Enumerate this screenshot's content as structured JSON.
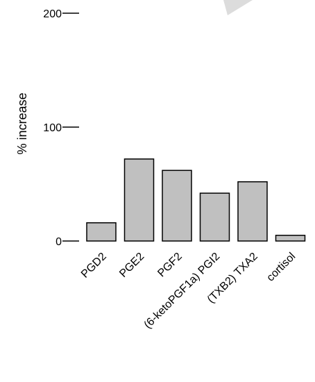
{
  "chart_data": {
    "type": "bar",
    "title": "",
    "xlabel": "",
    "ylabel": "% increase",
    "categories": [
      "PGD2",
      "PGE2",
      "PGF2",
      "(6-ketoPGF1a) PGI2",
      "(TXB2) TXA2",
      "cortisol"
    ],
    "values": [
      16,
      72,
      62,
      42,
      52,
      5
    ],
    "yticks": [
      {
        "value": 0,
        "label": "0"
      },
      {
        "value": 100,
        "label": "100"
      },
      {
        "value": 200,
        "label": "200"
      }
    ],
    "ylim": [
      0,
      200
    ],
    "grid": false,
    "legend": "none",
    "bar_fill": "#c0c0c0",
    "bar_stroke": "#000000"
  }
}
